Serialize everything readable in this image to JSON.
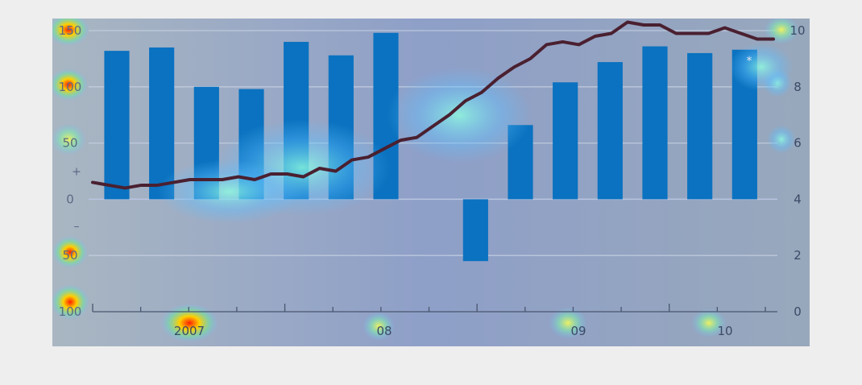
{
  "chart_data": {
    "type": "bar+line",
    "title": "",
    "left_axis": {
      "range": [
        -100,
        150
      ],
      "ticks": [
        -100,
        -50,
        0,
        50,
        100,
        150
      ],
      "tick_labels": [
        "100",
        "50",
        "0",
        "50",
        "100",
        "150"
      ]
    },
    "right_axis": {
      "range": [
        0,
        10
      ],
      "ticks": [
        0,
        2,
        4,
        6,
        8,
        10
      ],
      "tick_labels": [
        "0",
        "2",
        "4",
        "6",
        "8",
        "10"
      ]
    },
    "sign_markers": {
      "plus": "+",
      "minus": "–"
    },
    "x_labels": [
      "2007",
      "08",
      "09",
      "10"
    ],
    "bar_series": {
      "axis": "left",
      "values": [
        132,
        135,
        100,
        98,
        140,
        128,
        148,
        0,
        -55,
        66,
        104,
        122,
        136,
        130,
        133
      ]
    },
    "line_series": {
      "axis": "right",
      "values": [
        4.6,
        4.5,
        4.4,
        4.5,
        4.5,
        4.6,
        4.7,
        4.7,
        4.7,
        4.8,
        4.7,
        4.9,
        4.9,
        4.8,
        5.1,
        5.0,
        5.4,
        5.5,
        5.8,
        6.1,
        6.2,
        6.6,
        7.0,
        7.5,
        7.8,
        8.3,
        8.7,
        9.0,
        9.5,
        9.6,
        9.5,
        9.8,
        9.9,
        10.3,
        10.2,
        10.2,
        9.9,
        9.9,
        9.9,
        10.1,
        9.9,
        9.7,
        9.7
      ],
      "color": "#4a2030"
    },
    "asterisk": "*",
    "colors": {
      "bar": "#0a72c0",
      "line": "#4a2030",
      "plot_bg": "#9aaab8"
    }
  }
}
